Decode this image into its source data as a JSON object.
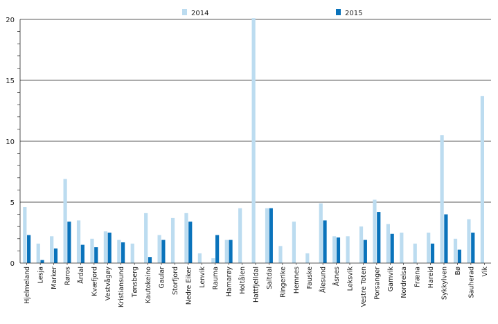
{
  "chart_data": {
    "type": "bar",
    "title": "",
    "xlabel": "",
    "ylabel": "",
    "ylim": [
      0,
      20
    ],
    "yticks": [
      0,
      5,
      10,
      15,
      20
    ],
    "grid": "horizontal major lines with minor ticks",
    "legend_position": "top-center",
    "categories": [
      "Hjelmeland",
      "Lesja",
      "Marker",
      "Røros",
      "Årdal",
      "Kvæfjord",
      "Vestvågøy",
      "Kristiansund",
      "Tønsberg",
      "Kautokeino",
      "Gaular",
      "Storfjord",
      "Nedre Eiker",
      "Lenvik",
      "Rauma",
      "Hamarøy",
      "Holtålen",
      "Hattfjelldal",
      "Saltdal",
      "Ringerike",
      "Hemnes",
      "Fauske",
      "Ålesund",
      "Åsnes",
      "Leksvik",
      "Vestre Toten",
      "Porsanger",
      "Gamvik",
      "Nordreisa",
      "Fræna",
      "Hareid",
      "Sykkylven",
      "Bø",
      "Sauherad",
      "Vik"
    ],
    "series": [
      {
        "name": "2014",
        "color": "#bcdcf0",
        "values": [
          4.6,
          1.6,
          2.2,
          6.9,
          3.5,
          2.0,
          2.6,
          1.9,
          1.6,
          4.1,
          2.3,
          3.7,
          4.1,
          0.8,
          0.4,
          1.9,
          4.5,
          20.1,
          4.5,
          1.4,
          3.4,
          0.8,
          4.9,
          2.2,
          2.2,
          3.0,
          5.2,
          3.2,
          2.5,
          1.6,
          2.5,
          10.5,
          2.0,
          3.6,
          13.7
        ]
      },
      {
        "name": "2015",
        "color": "#0a73bb",
        "values": [
          2.3,
          0.25,
          1.2,
          3.4,
          1.5,
          1.3,
          2.5,
          1.7,
          0,
          0.5,
          1.9,
          0,
          3.4,
          0,
          2.3,
          1.9,
          0,
          0,
          4.5,
          0,
          0,
          0,
          3.5,
          2.1,
          0,
          1.9,
          4.2,
          2.4,
          0,
          0,
          1.6,
          4.0,
          1.1,
          2.5,
          0
        ]
      }
    ]
  }
}
